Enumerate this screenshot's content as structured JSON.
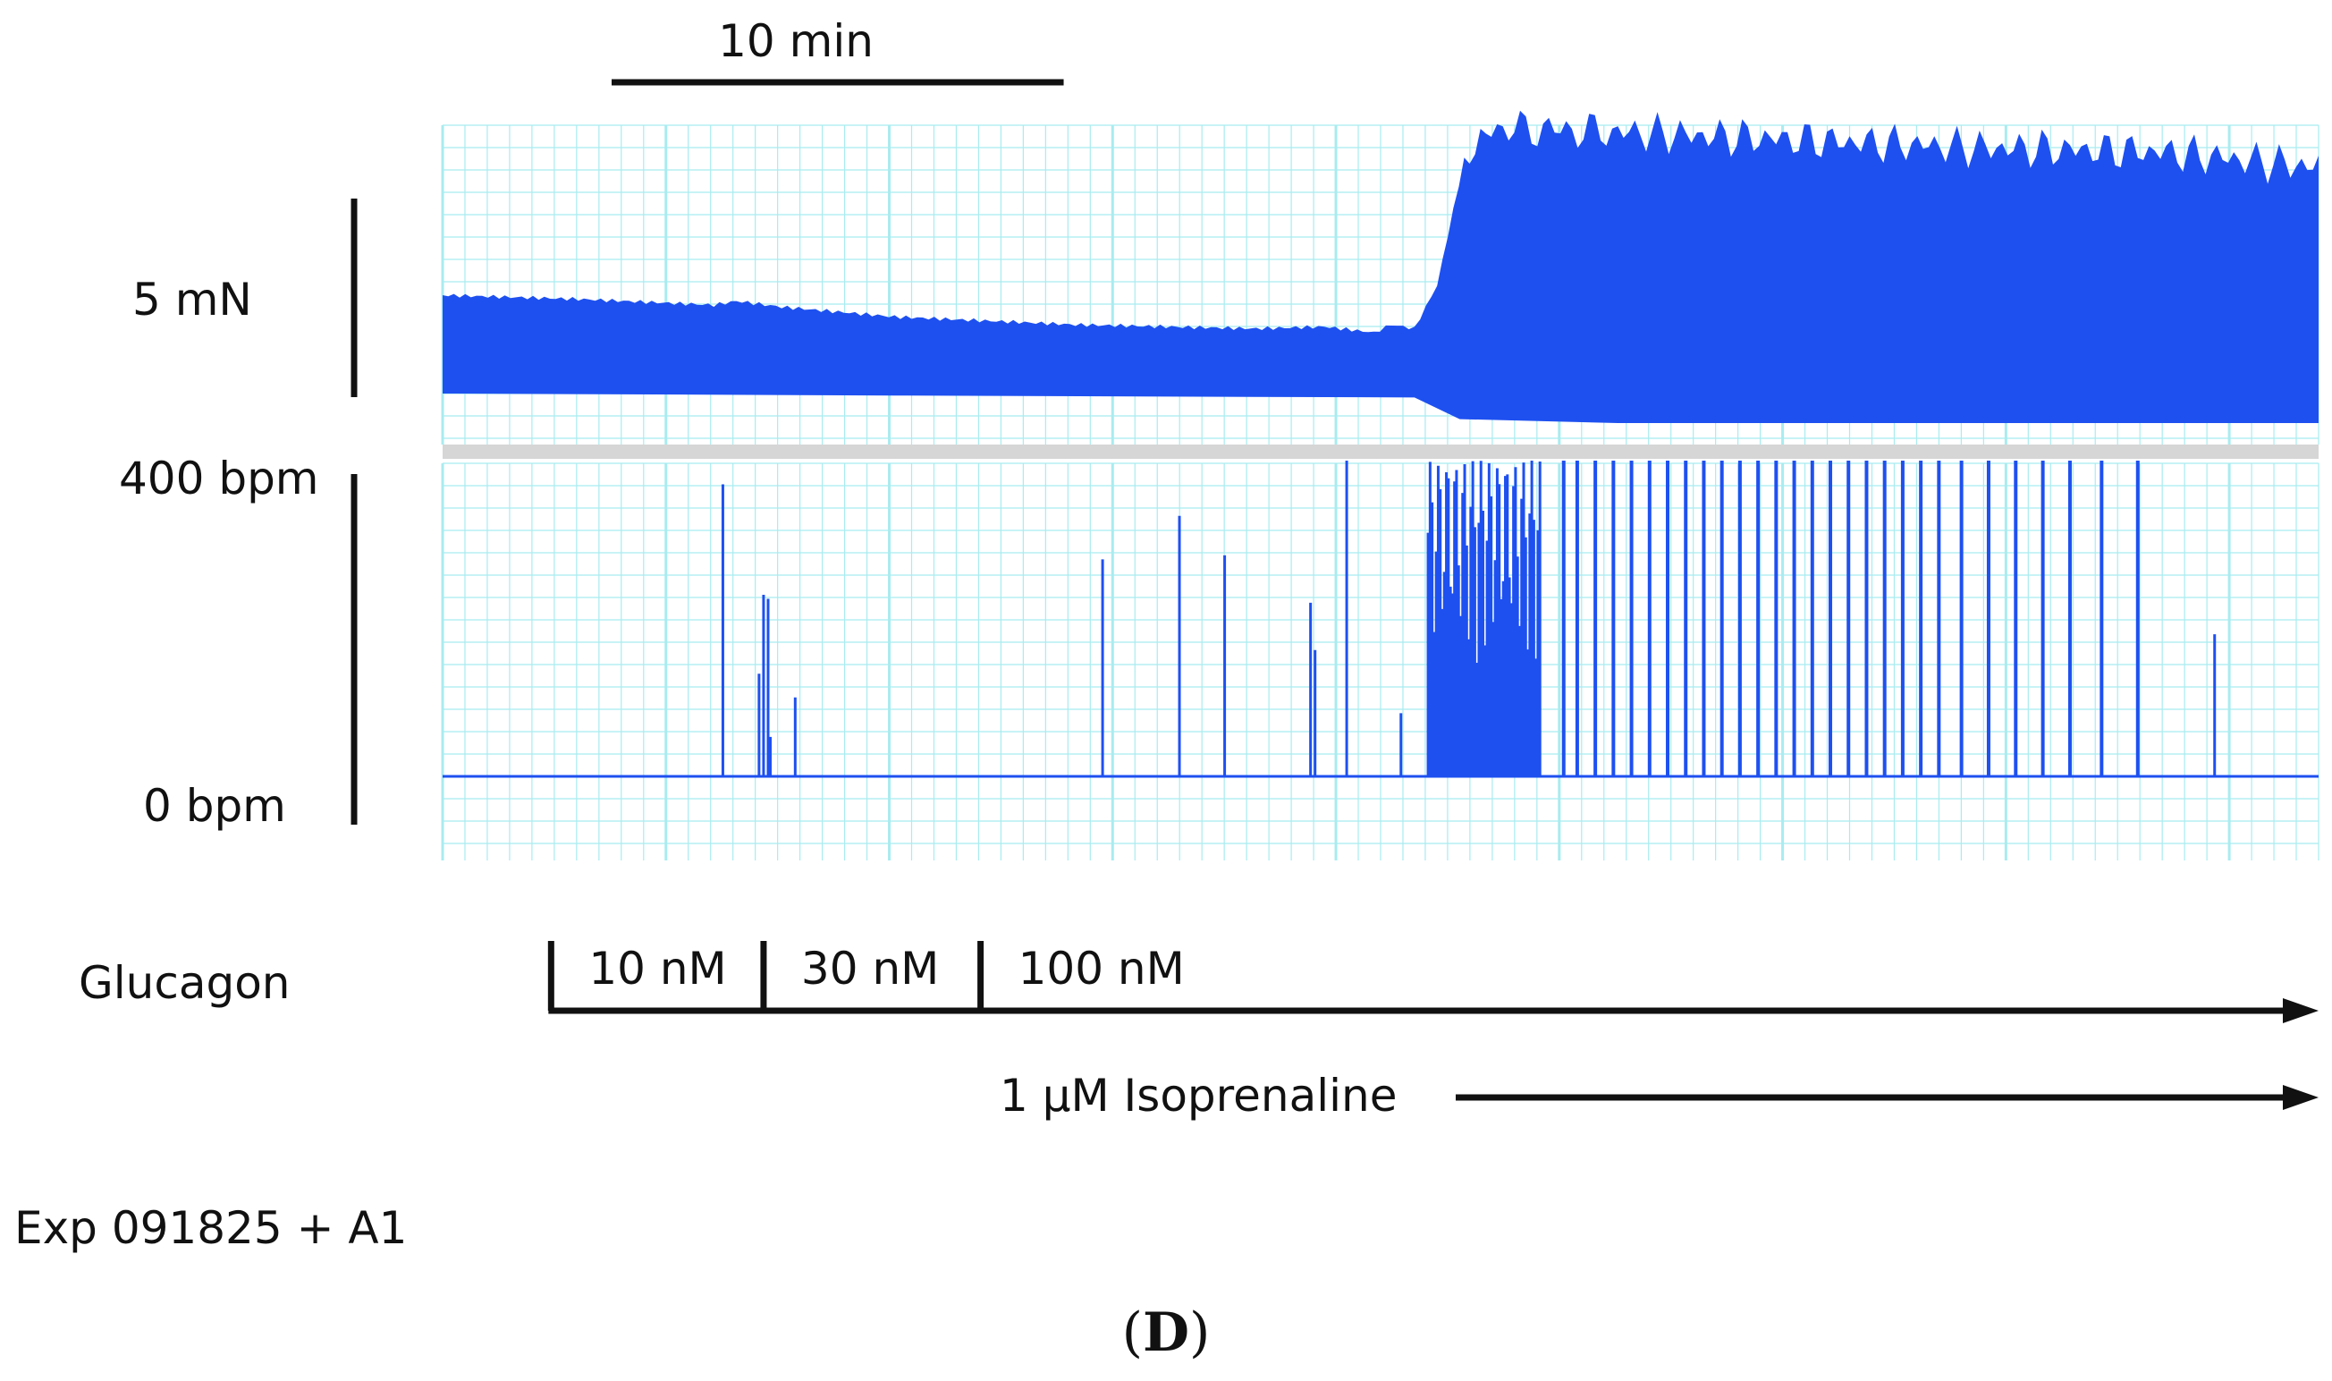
{
  "chart_data": {
    "type": "line",
    "title": "",
    "panel_label_open": "(",
    "panel_label_letter": "D",
    "panel_label_close": ")",
    "experiment_label": "Exp 091825 + A1",
    "series_color": "#1e50f0",
    "grid_color": "#a8ecf0",
    "time_scale_bar": {
      "label": "10 min",
      "minutes": 10
    },
    "x_range_min": [
      0,
      41.5
    ],
    "force_trace": {
      "scale_bar_label": "5 mN",
      "scale_bar_mN": 5,
      "upper_envelope_mN": [
        [
          0,
          5.05
        ],
        [
          3,
          4.95
        ],
        [
          6,
          4.8
        ],
        [
          6.5,
          4.9
        ],
        [
          7.5,
          4.75
        ],
        [
          10,
          4.5
        ],
        [
          14,
          4.3
        ],
        [
          18,
          4.2
        ],
        [
          19.5,
          4.25
        ],
        [
          20.6,
          4.1
        ],
        [
          21,
          4.3
        ],
        [
          21.5,
          4.2
        ],
        [
          22,
          5.3
        ],
        [
          22.6,
          8.5
        ],
        [
          23.2,
          9.3
        ],
        [
          26,
          9.2
        ],
        [
          30,
          9.0
        ],
        [
          34,
          8.8
        ],
        [
          38,
          8.7
        ],
        [
          41.5,
          8.3
        ]
      ],
      "lower_envelope_mN": [
        [
          0,
          2.55
        ],
        [
          10,
          2.5
        ],
        [
          21.5,
          2.45
        ],
        [
          22.5,
          1.9
        ],
        [
          26,
          1.8
        ],
        [
          41.5,
          1.8
        ]
      ]
    },
    "rate_trace": {
      "ylabel_top": "400 bpm",
      "ylabel_bottom": "0 bpm",
      "ylim": [
        0,
        400
      ],
      "isolated_spikes_bpm": [
        [
          6.2,
          370
        ],
        [
          7.0,
          130
        ],
        [
          7.1,
          230
        ],
        [
          7.2,
          225
        ],
        [
          7.25,
          50
        ],
        [
          7.8,
          100
        ],
        [
          14.6,
          275
        ],
        [
          16.3,
          330
        ],
        [
          17.3,
          280
        ],
        [
          19.2,
          220
        ],
        [
          19.3,
          160
        ],
        [
          20.0,
          400
        ],
        [
          21.2,
          80
        ],
        [
          39.2,
          180
        ]
      ],
      "dense_burst_minutes": [
        21.8,
        24.3
      ],
      "burst_spike_bpm": 400,
      "sparse_spike_minutes": [
        24.8,
        25.1,
        25.5,
        25.9,
        26.3,
        26.7,
        27.1,
        27.5,
        27.9,
        28.3,
        28.7,
        29.1,
        29.5,
        29.9,
        30.3,
        30.7,
        31.1,
        31.5,
        31.9,
        32.3,
        32.7,
        33.1,
        33.6,
        34.2,
        34.8,
        35.4,
        36.0,
        36.7,
        37.5
      ]
    },
    "treatments": {
      "drug_label": "Glucagon",
      "start_minute": 2.4,
      "steps": [
        {
          "label": "10 nM",
          "start": 2.4
        },
        {
          "label": "30 nM",
          "start": 7.1
        },
        {
          "label": "100 nM",
          "start": 11.9
        }
      ],
      "isoprenaline_label": "1 µM Isoprenaline",
      "isoprenaline_start": 22.6
    }
  }
}
